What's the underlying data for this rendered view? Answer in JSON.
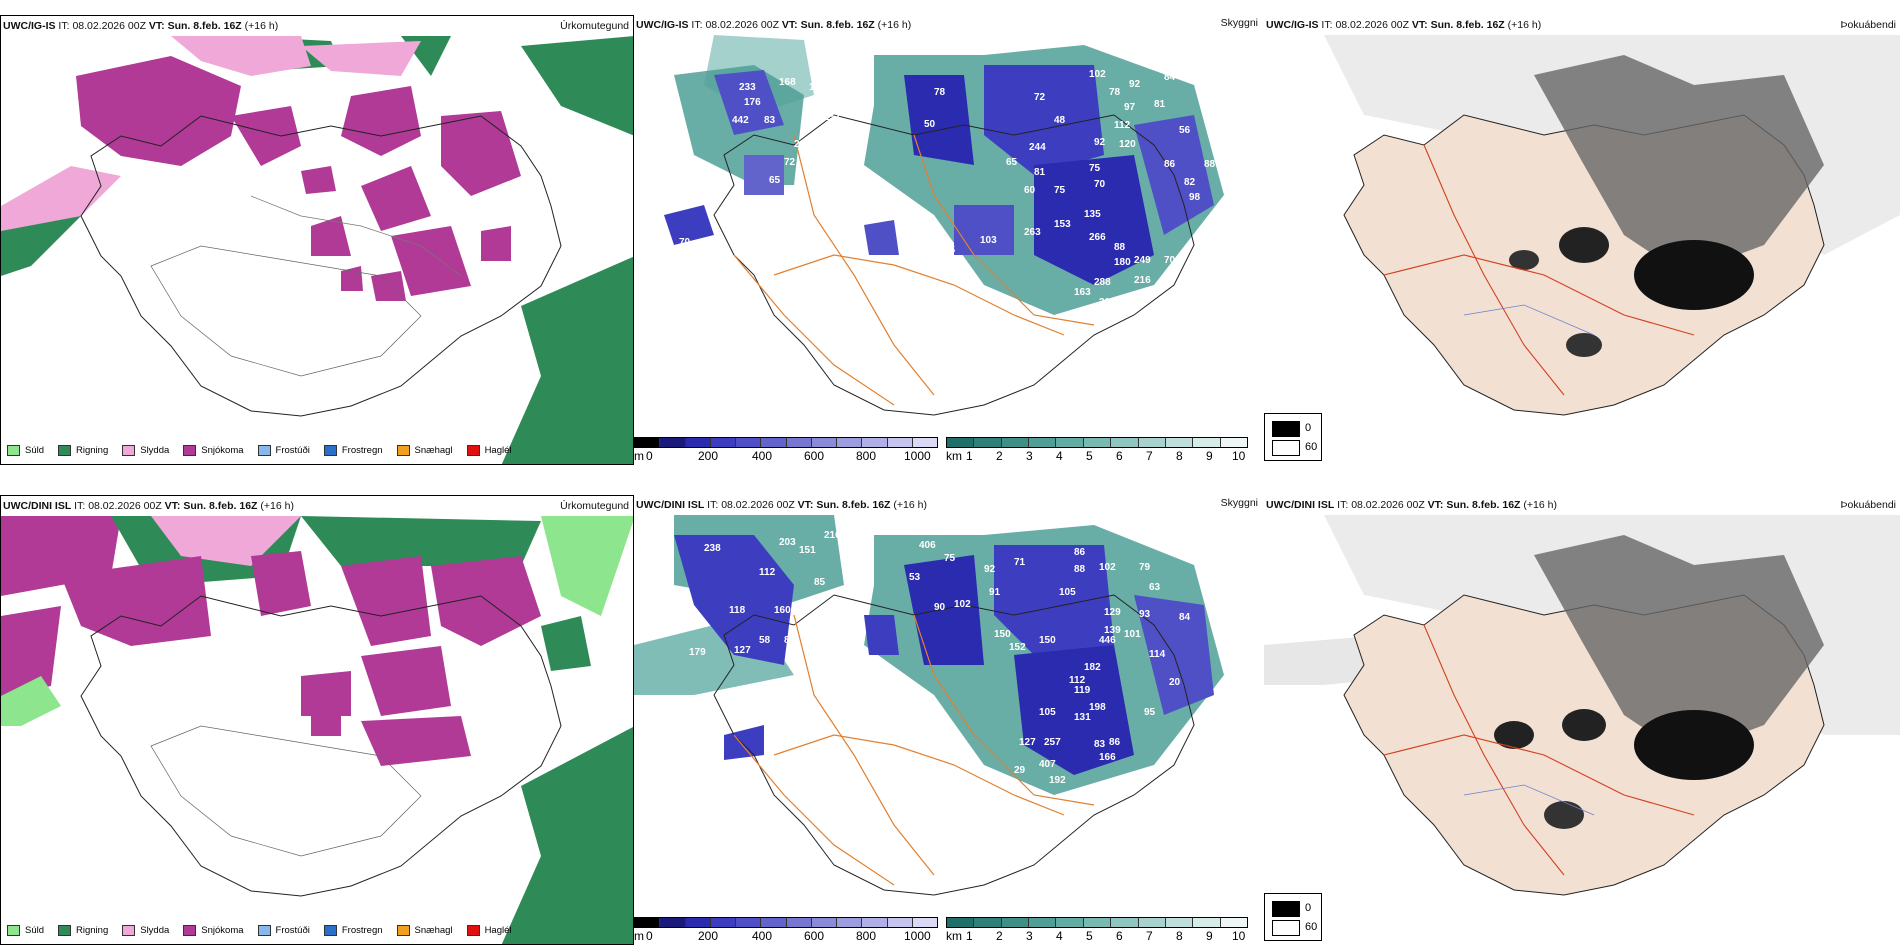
{
  "rows": [
    {
      "model": "UWC/IG-IS",
      "it_label": "IT:",
      "it_value": "08.02.2026 00Z",
      "vt_label": "VT:",
      "vt_value": "Sun. 8.feb. 16Z",
      "lead": "(+16 h)"
    },
    {
      "model": "UWC/DINI ISL",
      "it_label": "IT:",
      "it_value": "08.02.2026 00Z",
      "vt_label": "VT:",
      "vt_value": "Sun. 8.feb. 16Z",
      "lead": "(+16 h)"
    }
  ],
  "panel_titles": {
    "precip_type": "Úrkomutegund",
    "cloud_base": "Skyggni",
    "fog": "Þokuábendi"
  },
  "precip_legend": [
    {
      "label": "Súld",
      "color": "#8de58d"
    },
    {
      "label": "Rigning",
      "color": "#2e8b57"
    },
    {
      "label": "Slydda",
      "color": "#f0a8d8"
    },
    {
      "label": "Snjókoma",
      "color": "#b03a96"
    },
    {
      "label": "Frostúði",
      "color": "#86b7ee"
    },
    {
      "label": "Frostregn",
      "color": "#2a6fc8"
    },
    {
      "label": "Snæhagl",
      "color": "#f0a020"
    },
    {
      "label": "Haglél",
      "color": "#e01010"
    }
  ],
  "height_scale": {
    "unit": "m",
    "ticks": [
      "0",
      "200",
      "400",
      "600",
      "800",
      "1000"
    ],
    "colors": [
      "#000000",
      "#1a1a7a",
      "#2b2bb0",
      "#3d3dbf",
      "#5050c6",
      "#6363cc",
      "#7777d2",
      "#8a8ad8",
      "#9c9cde",
      "#b0b0e6",
      "#c4c4ee",
      "#dadaf6"
    ]
  },
  "visibility_scale": {
    "unit": "km",
    "ticks": [
      "1",
      "2",
      "3",
      "4",
      "5",
      "6",
      "7",
      "8",
      "9",
      "10"
    ],
    "colors": [
      "#1f6f6b",
      "#2f7f7a",
      "#3f8f89",
      "#4f9f98",
      "#62aca5",
      "#78b9b2",
      "#8ec6bf",
      "#a6d3cd",
      "#bedfdb",
      "#d6ece9",
      "#eef7f6"
    ]
  },
  "fog_legend": {
    "high": "0",
    "low": "60"
  },
  "cloud_numbers_top": [
    "102",
    "92",
    "84",
    "78",
    "97",
    "81",
    "72",
    "112",
    "120",
    "56",
    "86",
    "88",
    "64",
    "82",
    "98",
    "75",
    "70",
    "75",
    "135",
    "266",
    "88",
    "249",
    "70",
    "216",
    "180",
    "288",
    "217",
    "163",
    "153",
    "263",
    "244",
    "92",
    "81",
    "65",
    "60",
    "78",
    "50",
    "48",
    "233",
    "168",
    "134",
    "176",
    "442",
    "83",
    "293",
    "72",
    "65",
    "70",
    "96",
    "85",
    "103",
    "151"
  ],
  "cloud_numbers_bottom": [
    "238",
    "203",
    "151",
    "216",
    "112",
    "85",
    "118",
    "160",
    "58",
    "87",
    "179",
    "127",
    "406",
    "75",
    "53",
    "90",
    "102",
    "92",
    "91",
    "71",
    "86",
    "88",
    "102",
    "79",
    "63",
    "105",
    "129",
    "139",
    "93",
    "101",
    "446",
    "114",
    "84",
    "150",
    "152",
    "150",
    "182",
    "112",
    "119",
    "198",
    "131",
    "105",
    "257",
    "407",
    "192",
    "83",
    "95",
    "86",
    "166",
    "127",
    "29",
    "20"
  ]
}
